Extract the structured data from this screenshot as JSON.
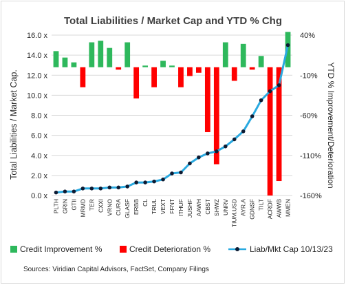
{
  "chart_data": {
    "type": "bar",
    "title": "Total Liabilities / Market Cap and YTD %  Chg",
    "ylabel_left": "Total Liabilities / Market Cap.",
    "ylabel_right": "YTD % Improvement/Deterioration",
    "categories": [
      "PLTH",
      "GRIN",
      "GTII",
      "MRMD",
      "TER",
      "CXXI",
      "VRNO",
      "CURA",
      "GLASF",
      "ERBB",
      "CL",
      "TRUL",
      "VEXT",
      "FFNT",
      "ITHUF",
      "JUSHF",
      "AAWH",
      "CBST",
      "SHWZ",
      "UNRV",
      "TIUM.USD",
      "AYR.A",
      "GDNSF",
      "TILT",
      "ACRDF",
      "AWWB",
      "MMEN"
    ],
    "left_axis": {
      "min": 0,
      "max": 16,
      "ticks": [
        0,
        2,
        4,
        6,
        8,
        10,
        12,
        14,
        16
      ],
      "tick_labels": [
        "0.0 x",
        "2.0 x",
        "4.0 x",
        "6.0 x",
        "8.0 x",
        "10.0 x",
        "12.0 x",
        "14.0 x",
        "16.0 x"
      ]
    },
    "right_axis": {
      "min": -160,
      "max": 40,
      "ticks": [
        40,
        -10,
        -60,
        -110,
        -160
      ],
      "tick_labels": [
        "40%",
        "-10%",
        "-60%",
        "-110%",
        "-160%"
      ]
    },
    "series": [
      {
        "name": "Credit Improvement %",
        "axis": "right",
        "color": "#2eb85c",
        "values": [
          20,
          12,
          6,
          null,
          31,
          33,
          24,
          null,
          31,
          null,
          2,
          null,
          8,
          2,
          null,
          null,
          null,
          null,
          null,
          31,
          null,
          29,
          null,
          14,
          null,
          null,
          44
        ]
      },
      {
        "name": "Credit Deterioration %",
        "axis": "right",
        "color": "#ff0000",
        "values": [
          null,
          null,
          null,
          -25,
          null,
          null,
          null,
          -3,
          null,
          -39,
          null,
          -25,
          null,
          null,
          -25,
          -11,
          -7,
          -81,
          -121,
          null,
          -17,
          null,
          -3,
          null,
          -160,
          -142,
          null
        ]
      },
      {
        "name": "Liab/Mkt Cap 10/13/23",
        "axis": "left",
        "type": "line",
        "color": "#29a9e0",
        "values": [
          0.3,
          0.4,
          0.4,
          0.7,
          0.7,
          0.7,
          0.8,
          0.8,
          0.9,
          1.3,
          1.3,
          1.4,
          1.6,
          2.2,
          2.3,
          3.2,
          3.8,
          4.2,
          4.4,
          4.9,
          5.6,
          6.4,
          7.9,
          9.5,
          10.4,
          11.0,
          15.0
        ]
      }
    ],
    "grid": true,
    "legend": "bottom"
  },
  "legend": {
    "improvement": "Credit Improvement %",
    "deterioration": "Credit Deterioration %",
    "line": "Liab/Mkt Cap 10/13/23"
  },
  "source": "Sources: Viridian Capital Advisors, FactSet, Company Filings"
}
